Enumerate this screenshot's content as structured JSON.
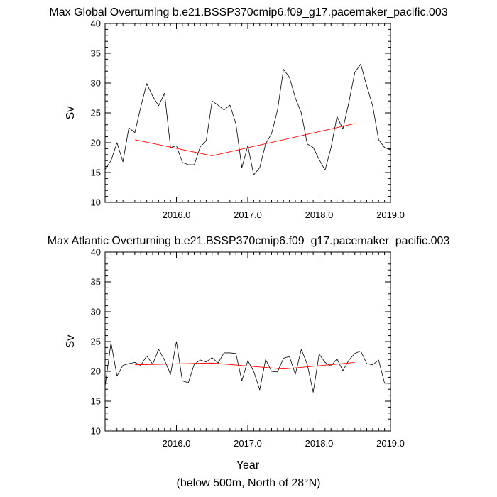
{
  "chart_data": [
    {
      "type": "line",
      "title": "Max Global Overturning b.e21.BSSP370cmip6.f09_g17.pacemaker_pacific.003",
      "ylabel": "Sv",
      "xlabel": "",
      "xlim": [
        2015.0,
        2019.0
      ],
      "ylim": [
        10,
        40
      ],
      "xticks": [
        "2016.0",
        "2017.0",
        "2018.0",
        "2019.0"
      ],
      "yticks": [
        "10",
        "15",
        "20",
        "25",
        "30",
        "35",
        "40"
      ],
      "grid": false,
      "colors": {
        "data": "#000000",
        "trend": "#ff0000"
      },
      "series": [
        {
          "x": [
            2015.0,
            2015.083,
            2015.167,
            2015.25,
            2015.333,
            2015.417,
            2015.5,
            2015.583,
            2015.667,
            2015.75,
            2015.833,
            2015.917,
            2016.0,
            2016.083,
            2016.167,
            2016.25,
            2016.333,
            2016.417,
            2016.5,
            2016.583,
            2016.667,
            2016.75,
            2016.833,
            2016.917,
            2017.0,
            2017.083,
            2017.167,
            2017.25,
            2017.333,
            2017.417,
            2017.5,
            2017.583,
            2017.667,
            2017.75,
            2017.833,
            2017.917,
            2018.0,
            2018.083,
            2018.167,
            2018.25,
            2018.333,
            2018.417,
            2018.5,
            2018.583,
            2018.667,
            2018.75,
            2018.833,
            2018.917,
            2019.0
          ],
          "y": [
            15.5,
            17.0,
            20.0,
            16.8,
            22.5,
            21.7,
            26.0,
            29.9,
            27.8,
            26.2,
            28.3,
            19.2,
            19.5,
            16.7,
            16.3,
            16.3,
            19.3,
            20.3,
            27.0,
            26.3,
            25.5,
            26.3,
            23.2,
            15.8,
            19.5,
            14.6,
            15.8,
            19.8,
            21.5,
            25.5,
            32.3,
            31.0,
            27.5,
            25.0,
            19.8,
            19.2,
            17.2,
            15.4,
            19.2,
            24.4,
            22.3,
            26.8,
            31.8,
            33.2,
            29.5,
            26.2,
            20.5,
            19.2,
            18.8
          ]
        },
        {
          "x": [
            2015.42,
            2016.5,
            2018.5
          ],
          "y": [
            20.5,
            17.8,
            23.2
          ]
        }
      ]
    },
    {
      "type": "line",
      "title": "Max Atlantic Overturning b.e21.BSSP370cmip6.f09_g17.pacemaker_pacific.003",
      "ylabel": "Sv",
      "xlabel": "Year",
      "xlim": [
        2015.0,
        2019.0
      ],
      "ylim": [
        10,
        40
      ],
      "xticks": [
        "2016.0",
        "2017.0",
        "2018.0",
        "2019.0"
      ],
      "yticks": [
        "10",
        "15",
        "20",
        "25",
        "30",
        "35",
        "40"
      ],
      "grid": false,
      "colors": {
        "data": "#000000",
        "trend": "#ff0000"
      },
      "series": [
        {
          "x": [
            2015.0,
            2015.083,
            2015.167,
            2015.25,
            2015.333,
            2015.417,
            2015.5,
            2015.583,
            2015.667,
            2015.75,
            2015.833,
            2015.917,
            2016.0,
            2016.083,
            2016.167,
            2016.25,
            2016.333,
            2016.417,
            2016.5,
            2016.583,
            2016.667,
            2016.75,
            2016.833,
            2016.917,
            2017.0,
            2017.083,
            2017.167,
            2017.25,
            2017.333,
            2017.417,
            2017.5,
            2017.583,
            2017.667,
            2017.75,
            2017.833,
            2017.917,
            2018.0,
            2018.083,
            2018.167,
            2018.25,
            2018.333,
            2018.417,
            2018.5,
            2018.583,
            2018.667,
            2018.75,
            2018.833,
            2018.917,
            2019.0
          ],
          "y": [
            17.5,
            24.8,
            19.2,
            21.0,
            21.3,
            21.5,
            21.0,
            22.6,
            21.2,
            23.7,
            21.9,
            19.5,
            25.0,
            18.4,
            18.1,
            21.2,
            21.9,
            21.6,
            22.3,
            21.4,
            23.1,
            23.1,
            23.0,
            18.4,
            21.8,
            20.0,
            16.9,
            22.0,
            20.0,
            19.9,
            22.2,
            22.5,
            19.5,
            23.7,
            21.2,
            16.5,
            22.9,
            21.5,
            20.9,
            22.1,
            20.1,
            21.9,
            23.0,
            23.4,
            21.3,
            21.1,
            21.9,
            18.0,
            18.0
          ]
        },
        {
          "x": [
            2015.42,
            2016.5,
            2017.5,
            2018.5
          ],
          "y": [
            21.1,
            21.4,
            20.4,
            21.5
          ]
        }
      ]
    }
  ],
  "footer": "(below 500m, North of 28°N)"
}
